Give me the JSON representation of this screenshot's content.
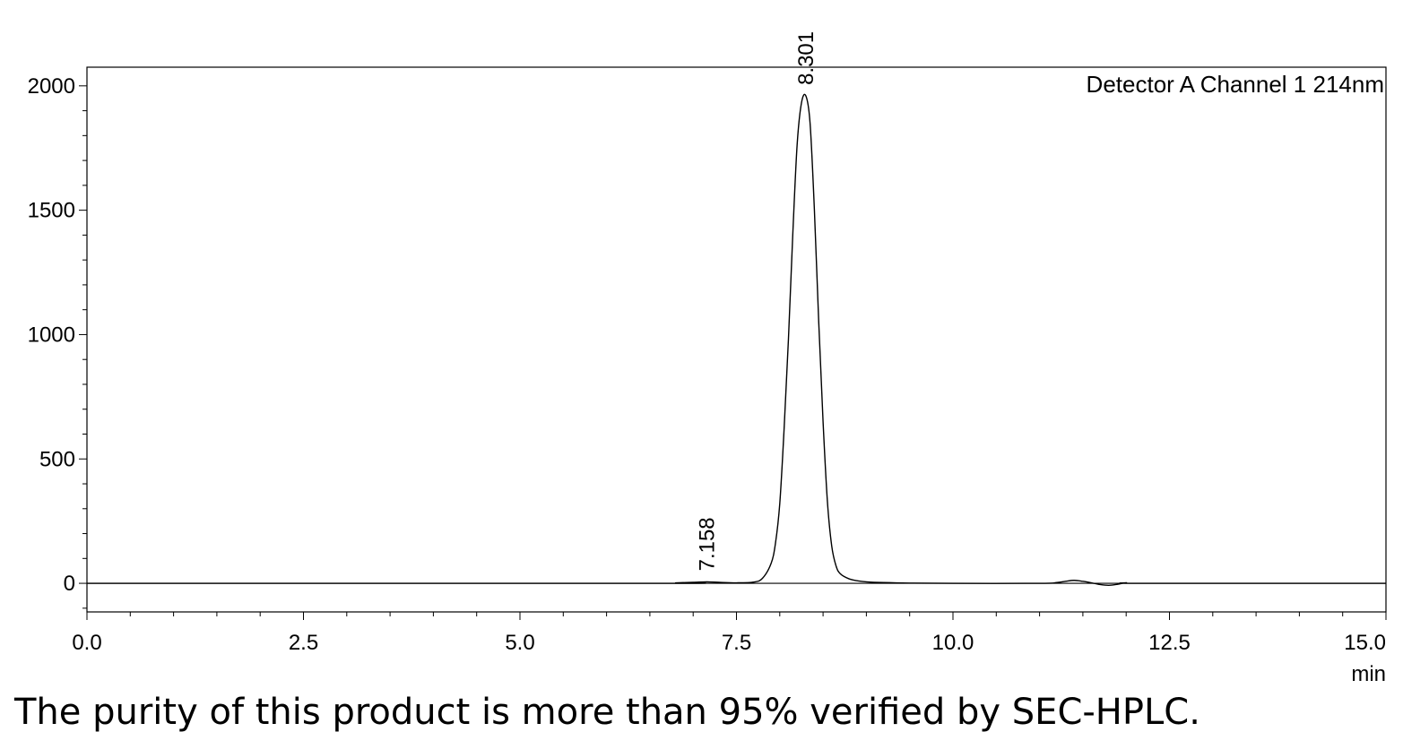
{
  "chart_data": {
    "type": "line",
    "title": "",
    "xlabel": "",
    "ylabel": "",
    "x_unit_label": "min",
    "xlim": [
      0,
      15
    ],
    "ylim": [
      -115,
      2075
    ],
    "x_ticks": [
      0.0,
      2.5,
      5.0,
      7.5,
      10.0,
      12.5,
      15.0
    ],
    "x_tick_labels": [
      "0.0",
      "2.5",
      "5.0",
      "7.5",
      "10.0",
      "12.5",
      "15.0"
    ],
    "x_minor_step": 0.5,
    "y_ticks": [
      0,
      500,
      1000,
      1500,
      2000
    ],
    "y_tick_labels": [
      "0",
      "500",
      "1000",
      "1500",
      "2000"
    ],
    "y_minor_step": 100,
    "grid": false,
    "legend": "Detector A Channel 1 214nm",
    "legend_position": "top-right",
    "baseline": 0,
    "series": [
      {
        "name": "Detector A Channel 1 214nm",
        "color": "#000000",
        "x": [
          0.0,
          6.6,
          6.8,
          7.0,
          7.158,
          7.3,
          7.5,
          7.7,
          7.8,
          7.9,
          7.95,
          8.0,
          8.05,
          8.1,
          8.15,
          8.2,
          8.25,
          8.301,
          8.35,
          8.4,
          8.45,
          8.5,
          8.55,
          8.6,
          8.65,
          8.7,
          8.8,
          8.9,
          9.0,
          9.2,
          9.5,
          10.0,
          11.0,
          11.2,
          11.3,
          11.4,
          11.5,
          11.6,
          11.7,
          11.8,
          11.9,
          12.0,
          12.2,
          15.0
        ],
        "y": [
          0,
          0,
          2,
          4,
          6,
          4,
          2,
          5,
          20,
          80,
          160,
          320,
          620,
          980,
          1400,
          1760,
          1930,
          1960,
          1850,
          1500,
          1050,
          650,
          330,
          150,
          70,
          38,
          18,
          10,
          6,
          3,
          1,
          0,
          0,
          3,
          8,
          12,
          8,
          2,
          -5,
          -8,
          -4,
          2,
          0,
          0
        ]
      }
    ],
    "peak_labels": [
      {
        "x": 7.158,
        "y": 6,
        "label": "7.158"
      },
      {
        "x": 8.301,
        "y": 1960,
        "label": "8.301"
      }
    ]
  },
  "caption": "The purity of this product is more than 95% verified by SEC-HPLC."
}
